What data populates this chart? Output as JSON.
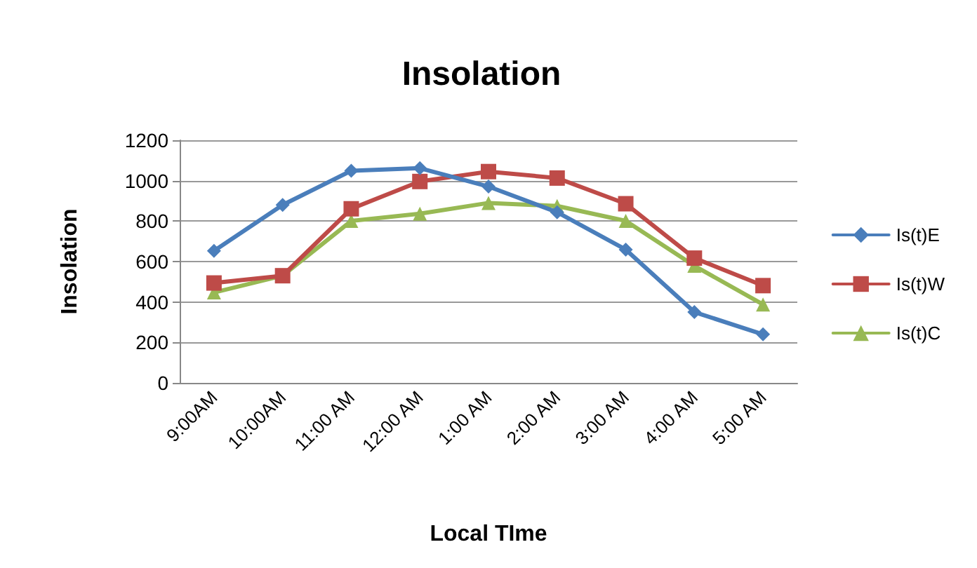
{
  "chart_data": {
    "type": "line",
    "title": "Insolation",
    "xlabel": "Local TIme",
    "ylabel": "Insolation",
    "categories": [
      "9:00AM",
      "10:00AM",
      "11:00 AM",
      "12:00 AM",
      "1:00 AM",
      "2:00 AM",
      "3:00 AM",
      "4:00 AM",
      "5:00 AM"
    ],
    "series": [
      {
        "name": "Is(t)E",
        "color": "#4a7ebb",
        "marker": "diamond",
        "values": [
          653,
          880,
          1049,
          1062,
          971,
          844,
          659,
          350,
          240
        ]
      },
      {
        "name": "Is(t)W",
        "color": "#be4b48",
        "marker": "square",
        "values": [
          494,
          530,
          861,
          996,
          1045,
          1013,
          886,
          617,
          481
        ]
      },
      {
        "name": "Is(t)C",
        "color": "#98b954",
        "marker": "triangle",
        "values": [
          447,
          530,
          801,
          837,
          890,
          875,
          801,
          579,
          388
        ]
      }
    ],
    "ylim": [
      0,
      1200
    ],
    "yticks": [
      0,
      200,
      400,
      600,
      800,
      1000,
      1200
    ],
    "grid": "y",
    "legend": "right",
    "line_style": "solid"
  }
}
